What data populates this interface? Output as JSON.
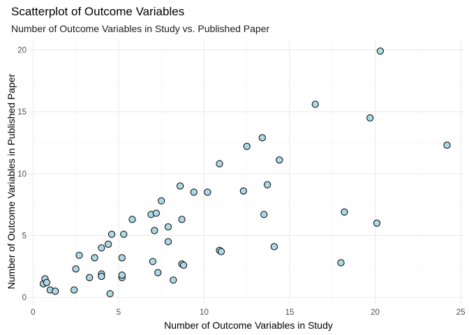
{
  "chart_data": {
    "type": "scatter",
    "title": "Scatterplot of Outcome Variables",
    "subtitle": "Number of Outcome Variables in Study vs. Published Paper",
    "xlabel": "Number of Outcome Variables in Study",
    "ylabel": "Number of Outcome Variables in Published Paper",
    "xlim": [
      -0.3,
      25.2
    ],
    "ylim": [
      -0.5,
      20.7
    ],
    "x_ticks": [
      0,
      5,
      10,
      15,
      20,
      25
    ],
    "y_ticks": [
      0,
      5,
      10,
      15,
      20
    ],
    "grid": true,
    "legend": "none",
    "point_fill": "#add8e6",
    "point_stroke": "#000000",
    "points": [
      {
        "x": 0.6,
        "y": 1.1
      },
      {
        "x": 0.7,
        "y": 1.5
      },
      {
        "x": 0.8,
        "y": 1.2
      },
      {
        "x": 1.0,
        "y": 0.6
      },
      {
        "x": 1.3,
        "y": 0.5
      },
      {
        "x": 2.4,
        "y": 0.6
      },
      {
        "x": 2.5,
        "y": 2.3
      },
      {
        "x": 2.7,
        "y": 3.4
      },
      {
        "x": 3.3,
        "y": 1.6
      },
      {
        "x": 3.6,
        "y": 3.2
      },
      {
        "x": 4.0,
        "y": 1.9
      },
      {
        "x": 4.0,
        "y": 1.7
      },
      {
        "x": 4.0,
        "y": 4.0
      },
      {
        "x": 4.4,
        "y": 4.3
      },
      {
        "x": 4.5,
        "y": 0.3
      },
      {
        "x": 4.6,
        "y": 5.1
      },
      {
        "x": 5.2,
        "y": 1.6
      },
      {
        "x": 5.2,
        "y": 1.8
      },
      {
        "x": 5.2,
        "y": 3.2
      },
      {
        "x": 5.3,
        "y": 5.1
      },
      {
        "x": 5.8,
        "y": 6.3
      },
      {
        "x": 6.9,
        "y": 6.7
      },
      {
        "x": 7.0,
        "y": 2.9
      },
      {
        "x": 7.1,
        "y": 5.4
      },
      {
        "x": 7.2,
        "y": 6.8
      },
      {
        "x": 7.3,
        "y": 2.0
      },
      {
        "x": 7.5,
        "y": 7.8
      },
      {
        "x": 7.9,
        "y": 5.7
      },
      {
        "x": 7.9,
        "y": 4.5
      },
      {
        "x": 8.2,
        "y": 1.4
      },
      {
        "x": 8.6,
        "y": 9.0
      },
      {
        "x": 8.7,
        "y": 6.3
      },
      {
        "x": 8.7,
        "y": 2.7
      },
      {
        "x": 8.8,
        "y": 2.6
      },
      {
        "x": 9.4,
        "y": 8.5
      },
      {
        "x": 10.2,
        "y": 8.5
      },
      {
        "x": 10.9,
        "y": 10.8
      },
      {
        "x": 10.9,
        "y": 3.8
      },
      {
        "x": 11.0,
        "y": 3.7
      },
      {
        "x": 12.3,
        "y": 8.6
      },
      {
        "x": 12.5,
        "y": 12.2
      },
      {
        "x": 13.4,
        "y": 12.9
      },
      {
        "x": 13.5,
        "y": 6.7
      },
      {
        "x": 13.7,
        "y": 9.1
      },
      {
        "x": 14.1,
        "y": 4.1
      },
      {
        "x": 14.4,
        "y": 11.1
      },
      {
        "x": 16.5,
        "y": 15.6
      },
      {
        "x": 18.0,
        "y": 2.8
      },
      {
        "x": 18.2,
        "y": 6.9
      },
      {
        "x": 19.7,
        "y": 14.5
      },
      {
        "x": 20.1,
        "y": 6.0
      },
      {
        "x": 20.3,
        "y": 19.9
      },
      {
        "x": 24.2,
        "y": 12.3
      }
    ]
  }
}
